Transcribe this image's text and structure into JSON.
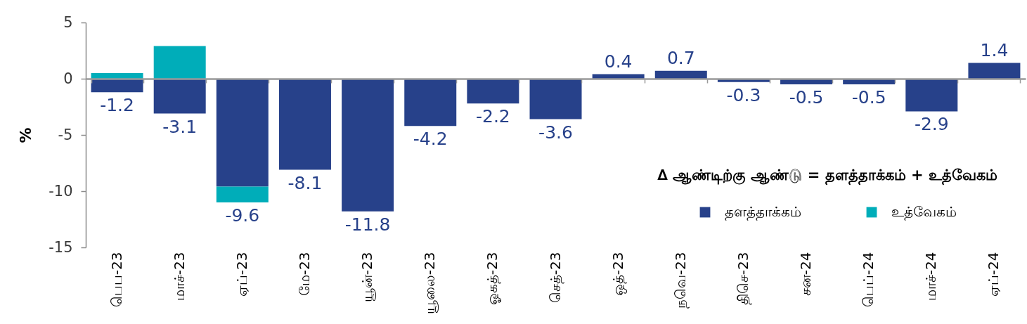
{
  "chart_data": {
    "type": "bar",
    "stacked": true,
    "ylabel": "%",
    "legend_title": "∆ ஆண்டிற்கு ஆண்டு = தளத்தாக்கம் + உத்வேகம்",
    "legend": "bottom right",
    "categories": [
      "பெப-23",
      "மாச்-23",
      "ஏப்-23",
      "மே-23",
      "யூன்-23",
      "யூலை-23",
      "ஓகத்-23",
      "செத்-23",
      "ஒத்-23",
      "நவெ-23",
      "திசெ-23",
      "சன-24",
      "பெப்-24",
      "மாச்-24",
      "ஏப்-24"
    ],
    "series": [
      {
        "name": "தளத்தாக்கம்",
        "color": "#27418a",
        "values": [
          -1.2,
          -3.1,
          -9.6,
          -8.1,
          -11.8,
          -4.2,
          -2.2,
          -3.6,
          0.4,
          0.7,
          -0.3,
          -0.5,
          -0.5,
          -2.9,
          1.4
        ],
        "value_labels": [
          "-1.2",
          "-3.1",
          "-9.6",
          "-8.1",
          "-11.8",
          "-4.2",
          "-2.2",
          "-3.6",
          "0.4",
          "0.7",
          "-0.3",
          "-0.5",
          "-0.5",
          "-2.9",
          "1.4"
        ]
      },
      {
        "name": "உத்வேகம்",
        "color": "#00adb9",
        "values": [
          0.5,
          2.9,
          -1.4,
          null,
          null,
          null,
          null,
          null,
          null,
          null,
          null,
          null,
          null,
          null,
          null
        ]
      }
    ],
    "ylim": [
      -15,
      5
    ],
    "yticks": [
      -15,
      -10,
      -5,
      0,
      5
    ]
  }
}
